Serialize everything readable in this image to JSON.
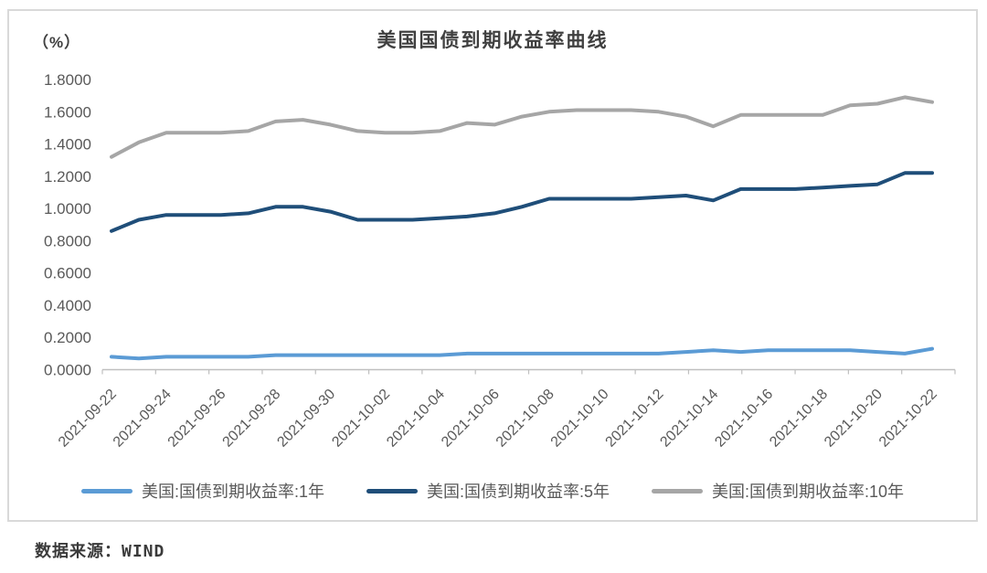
{
  "header": {
    "unit_label": "（%）",
    "title": "美国国债到期收益率曲线"
  },
  "source_note": "数据来源：WIND",
  "chart_data": {
    "type": "line",
    "title": "美国国债到期收益率曲线",
    "unit_label": "（%）",
    "xlabel": "",
    "ylabel": "(%)",
    "ylim": [
      0.0,
      1.8
    ],
    "ytick_step": 0.2,
    "ytick_format_decimals": 4,
    "grid": false,
    "legend_position": "bottom",
    "axis_color": "#BFBFBF",
    "text_color": "#595959",
    "categories": [
      "2021-09-22",
      "2021-09-23",
      "2021-09-24",
      "2021-09-25",
      "2021-09-26",
      "2021-09-27",
      "2021-09-28",
      "2021-09-29",
      "2021-09-30",
      "2021-10-01",
      "2021-10-02",
      "2021-10-03",
      "2021-10-04",
      "2021-10-05",
      "2021-10-06",
      "2021-10-07",
      "2021-10-08",
      "2021-10-09",
      "2021-10-10",
      "2021-10-11",
      "2021-10-12",
      "2021-10-13",
      "2021-10-14",
      "2021-10-15",
      "2021-10-16",
      "2021-10-17",
      "2021-10-18",
      "2021-10-19",
      "2021-10-20",
      "2021-10-21",
      "2021-10-22"
    ],
    "x_tick_labels": [
      "2021-09-22",
      "2021-09-24",
      "2021-09-26",
      "2021-09-28",
      "2021-09-30",
      "2021-10-02",
      "2021-10-04",
      "2021-10-06",
      "2021-10-08",
      "2021-10-10",
      "2021-10-12",
      "2021-10-14",
      "2021-10-16",
      "2021-10-18",
      "2021-10-20",
      "2021-10-22"
    ],
    "series": [
      {
        "name": "美国:国债到期收益率:1年",
        "color": "#5B9BD5",
        "values": [
          0.08,
          0.07,
          0.08,
          0.08,
          0.08,
          0.08,
          0.09,
          0.09,
          0.09,
          0.09,
          0.09,
          0.09,
          0.09,
          0.1,
          0.1,
          0.1,
          0.1,
          0.1,
          0.1,
          0.1,
          0.1,
          0.11,
          0.12,
          0.11,
          0.12,
          0.12,
          0.12,
          0.12,
          0.11,
          0.1,
          0.13
        ]
      },
      {
        "name": "美国:国债到期收益率:5年",
        "color": "#1F4E79",
        "values": [
          0.86,
          0.93,
          0.96,
          0.96,
          0.96,
          0.97,
          1.01,
          1.01,
          0.98,
          0.93,
          0.93,
          0.93,
          0.94,
          0.95,
          0.97,
          1.01,
          1.06,
          1.06,
          1.06,
          1.06,
          1.07,
          1.08,
          1.05,
          1.12,
          1.12,
          1.12,
          1.13,
          1.14,
          1.15,
          1.22,
          1.22
        ]
      },
      {
        "name": "美国:国债到期收益率:10年",
        "color": "#A6A6A6",
        "values": [
          1.32,
          1.41,
          1.47,
          1.47,
          1.47,
          1.48,
          1.54,
          1.55,
          1.52,
          1.48,
          1.47,
          1.47,
          1.48,
          1.53,
          1.52,
          1.57,
          1.6,
          1.61,
          1.61,
          1.61,
          1.6,
          1.57,
          1.51,
          1.58,
          1.58,
          1.58,
          1.58,
          1.64,
          1.65,
          1.69,
          1.66
        ]
      }
    ]
  }
}
